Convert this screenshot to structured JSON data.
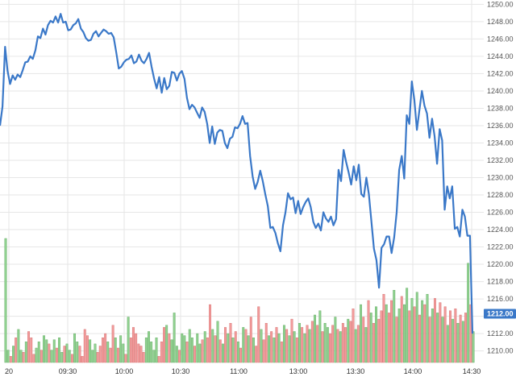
{
  "chart_data": {
    "type": "line",
    "x_tick_labels": [
      "20",
      "09:30",
      "10:00",
      "10:30",
      "11:00",
      "13:00",
      "13:30",
      "14:00",
      "14:30"
    ],
    "y_tick_labels": [
      "1210.00",
      "1212.00",
      "1214.00",
      "1216.00",
      "1218.00",
      "1220.00",
      "1222.00",
      "1224.00",
      "1226.00",
      "1228.00",
      "1230.00",
      "1232.00",
      "1234.00",
      "1236.00",
      "1238.00",
      "1240.00",
      "1242.00",
      "1244.00",
      "1246.00",
      "1248.00",
      "1250.00"
    ],
    "ylim": [
      1209.5,
      1250.5
    ],
    "last_price_label": "1212.00",
    "grid": true,
    "colors": {
      "price": "#3a78c8",
      "volume_up": "#8fd18f",
      "volume_down": "#f29a9a"
    },
    "series": [
      {
        "values": [
          1236.0,
          1238.2,
          1245.1,
          1242.3,
          1240.8,
          1241.8,
          1241.3,
          1241.9,
          1241.6,
          1242.4,
          1243.3,
          1243.4,
          1244.0,
          1243.7,
          1244.7,
          1246.3,
          1246.1,
          1247.2,
          1246.5,
          1247.6,
          1248.1,
          1247.9,
          1248.6,
          1247.9,
          1248.9,
          1247.9,
          1248.0,
          1247.0,
          1247.1,
          1247.6,
          1247.8,
          1248.3,
          1247.2,
          1246.8,
          1246.1,
          1245.8,
          1245.9,
          1246.6,
          1246.9,
          1246.3,
          1246.7,
          1247.1,
          1246.9,
          1246.6,
          1246.7,
          1246.2,
          1244.5,
          1242.6,
          1242.8,
          1243.3,
          1243.6,
          1243.7,
          1244.1,
          1243.2,
          1243.4,
          1244.2,
          1243.5,
          1243.2,
          1243.7,
          1244.4,
          1242.8,
          1241.4,
          1240.3,
          1241.6,
          1239.8,
          1241.5,
          1240.2,
          1240.6,
          1242.2,
          1242.1,
          1241.2,
          1242.0,
          1242.3,
          1241.4,
          1239.2,
          1237.9,
          1238.4,
          1238.1,
          1237.5,
          1236.9,
          1238.1,
          1237.6,
          1236.2,
          1234.0,
          1235.9,
          1233.9,
          1235.2,
          1235.5,
          1235.4,
          1234.0,
          1233.4,
          1234.5,
          1234.7,
          1235.8,
          1235.7,
          1236.2,
          1237.1,
          1236.2,
          1236.3,
          1232.5,
          1230.1,
          1228.7,
          1229.5,
          1230.8,
          1229.6,
          1228.1,
          1226.7,
          1224.2,
          1224.3,
          1223.6,
          1222.4,
          1221.5,
          1224.5,
          1226.0,
          1228.2,
          1227.5,
          1227.7,
          1225.9,
          1227.3,
          1225.8,
          1226.6,
          1227.2,
          1227.6,
          1226.6,
          1224.9,
          1224.2,
          1224.7,
          1223.9,
          1226.0,
          1225.3,
          1224.9,
          1225.5,
          1224.5,
          1225.2,
          1230.9,
          1229.6,
          1233.2,
          1231.8,
          1230.6,
          1229.2,
          1231.3,
          1229.7,
          1231.5,
          1228.1,
          1227.8,
          1230.0,
          1228.1,
          1224.9,
          1221.8,
          1220.5,
          1217.3,
          1221.9,
          1222.3,
          1223.2,
          1223.2,
          1221.3,
          1223.1,
          1226.0,
          1230.9,
          1232.5,
          1229.9,
          1237.2,
          1236.2,
          1241.1,
          1239.0,
          1235.5,
          1237.8,
          1240.0,
          1238.3,
          1237.4,
          1234.6,
          1236.8,
          1234.8,
          1231.6,
          1235.6,
          1234.3,
          1226.3,
          1229.0,
          1227.6,
          1229.0,
          1224.1,
          1224.3,
          1223.2,
          1226.3,
          1225.5,
          1223.3,
          1223.3,
          1212.0
        ]
      }
    ],
    "volume": [
      {
        "h": 60,
        "up": true
      },
      {
        "h": 6,
        "up": true
      },
      {
        "h": 3,
        "up": false
      },
      {
        "h": 8,
        "up": true
      },
      {
        "h": 12,
        "up": false
      },
      {
        "h": 16,
        "up": true
      },
      {
        "h": 6,
        "up": true
      },
      {
        "h": 5,
        "up": false
      },
      {
        "h": 10,
        "up": true
      },
      {
        "h": 15,
        "up": false
      },
      {
        "h": 12,
        "up": false
      },
      {
        "h": 4,
        "up": false
      },
      {
        "h": 7,
        "up": true
      },
      {
        "h": 10,
        "up": true
      },
      {
        "h": 6,
        "up": false
      },
      {
        "h": 13,
        "up": true
      },
      {
        "h": 11,
        "up": true
      },
      {
        "h": 9,
        "up": false
      },
      {
        "h": 6,
        "up": true
      },
      {
        "h": 11,
        "up": true
      },
      {
        "h": 7,
        "up": false
      },
      {
        "h": 12,
        "up": true
      },
      {
        "h": 5,
        "up": true
      },
      {
        "h": 8,
        "up": false
      },
      {
        "h": 9,
        "up": true
      },
      {
        "h": 6,
        "up": true
      },
      {
        "h": 4,
        "up": false
      },
      {
        "h": 14,
        "up": true
      },
      {
        "h": 10,
        "up": true
      },
      {
        "h": 8,
        "up": false
      },
      {
        "h": 3,
        "up": false
      },
      {
        "h": 16,
        "up": false
      },
      {
        "h": 13,
        "up": false
      },
      {
        "h": 11,
        "up": true
      },
      {
        "h": 6,
        "up": true
      },
      {
        "h": 9,
        "up": true
      },
      {
        "h": 5,
        "up": false
      },
      {
        "h": 8,
        "up": false
      },
      {
        "h": 12,
        "up": false
      },
      {
        "h": 14,
        "up": false
      },
      {
        "h": 10,
        "up": true
      },
      {
        "h": 7,
        "up": false
      },
      {
        "h": 18,
        "up": false
      },
      {
        "h": 12,
        "up": true
      },
      {
        "h": 7,
        "up": false
      },
      {
        "h": 13,
        "up": true
      },
      {
        "h": 9,
        "up": true
      },
      {
        "h": 4,
        "up": false
      },
      {
        "h": 22,
        "up": true
      },
      {
        "h": 12,
        "up": false
      },
      {
        "h": 17,
        "up": false
      },
      {
        "h": 14,
        "up": false
      },
      {
        "h": 9,
        "up": false
      },
      {
        "h": 8,
        "up": false
      },
      {
        "h": 5,
        "up": false
      },
      {
        "h": 12,
        "up": true
      },
      {
        "h": 15,
        "up": true
      },
      {
        "h": 10,
        "up": true
      },
      {
        "h": 6,
        "up": true
      },
      {
        "h": 12,
        "up": true
      },
      {
        "h": 3,
        "up": false
      },
      {
        "h": 10,
        "up": false
      },
      {
        "h": 17,
        "up": false
      },
      {
        "h": 18,
        "up": true
      },
      {
        "h": 14,
        "up": false
      },
      {
        "h": 11,
        "up": true
      },
      {
        "h": 24,
        "up": true
      },
      {
        "h": 8,
        "up": true
      },
      {
        "h": 6,
        "up": false
      },
      {
        "h": 14,
        "up": true
      },
      {
        "h": 13,
        "up": true
      },
      {
        "h": 10,
        "up": false
      },
      {
        "h": 16,
        "up": true
      },
      {
        "h": 12,
        "up": true
      },
      {
        "h": 8,
        "up": false
      },
      {
        "h": 14,
        "up": true
      },
      {
        "h": 9,
        "up": true
      },
      {
        "h": 11,
        "up": false
      },
      {
        "h": 15,
        "up": true
      },
      {
        "h": 12,
        "up": false
      },
      {
        "h": 28,
        "up": false
      },
      {
        "h": 16,
        "up": true
      },
      {
        "h": 13,
        "up": false
      },
      {
        "h": 20,
        "up": true
      },
      {
        "h": 11,
        "up": false
      },
      {
        "h": 9,
        "up": true
      },
      {
        "h": 17,
        "up": false
      },
      {
        "h": 14,
        "up": true
      },
      {
        "h": 19,
        "up": false
      },
      {
        "h": 12,
        "up": true
      },
      {
        "h": 15,
        "up": false
      },
      {
        "h": 10,
        "up": true
      },
      {
        "h": 7,
        "up": false
      },
      {
        "h": 17,
        "up": true
      },
      {
        "h": 16,
        "up": false
      },
      {
        "h": 13,
        "up": true
      },
      {
        "h": 22,
        "up": false
      },
      {
        "h": 12,
        "up": true
      },
      {
        "h": 8,
        "up": false
      },
      {
        "h": 27,
        "up": false
      },
      {
        "h": 16,
        "up": true
      },
      {
        "h": 11,
        "up": false
      },
      {
        "h": 19,
        "up": false
      },
      {
        "h": 13,
        "up": true
      },
      {
        "h": 15,
        "up": false
      },
      {
        "h": 12,
        "up": true
      },
      {
        "h": 17,
        "up": false
      },
      {
        "h": 14,
        "up": true
      },
      {
        "h": 10,
        "up": false
      },
      {
        "h": 18,
        "up": true
      },
      {
        "h": 16,
        "up": false
      },
      {
        "h": 13,
        "up": true
      },
      {
        "h": 21,
        "up": false
      },
      {
        "h": 15,
        "up": true
      },
      {
        "h": 12,
        "up": false
      },
      {
        "h": 19,
        "up": true
      },
      {
        "h": 17,
        "up": false
      },
      {
        "h": 14,
        "up": true
      },
      {
        "h": 18,
        "up": false
      },
      {
        "h": 16,
        "up": true
      },
      {
        "h": 20,
        "up": false
      },
      {
        "h": 23,
        "up": true
      },
      {
        "h": 18,
        "up": false
      },
      {
        "h": 25,
        "up": true
      },
      {
        "h": 15,
        "up": false
      },
      {
        "h": 19,
        "up": true
      },
      {
        "h": 17,
        "up": true
      },
      {
        "h": 14,
        "up": false
      },
      {
        "h": 18,
        "up": false
      },
      {
        "h": 22,
        "up": true
      },
      {
        "h": 16,
        "up": false
      },
      {
        "h": 15,
        "up": true
      },
      {
        "h": 19,
        "up": false
      },
      {
        "h": 17,
        "up": false
      },
      {
        "h": 21,
        "up": true
      },
      {
        "h": 20,
        "up": false
      },
      {
        "h": 26,
        "up": false
      },
      {
        "h": 16,
        "up": true
      },
      {
        "h": 18,
        "up": false
      },
      {
        "h": 28,
        "up": true
      },
      {
        "h": 22,
        "up": false
      },
      {
        "h": 17,
        "up": true
      },
      {
        "h": 30,
        "up": false
      },
      {
        "h": 24,
        "up": true
      },
      {
        "h": 19,
        "up": false
      },
      {
        "h": 27,
        "up": true
      },
      {
        "h": 21,
        "up": false
      },
      {
        "h": 25,
        "up": false
      },
      {
        "h": 33,
        "up": false
      },
      {
        "h": 28,
        "up": true
      },
      {
        "h": 24,
        "up": false
      },
      {
        "h": 30,
        "up": false
      },
      {
        "h": 35,
        "up": true
      },
      {
        "h": 22,
        "up": false
      },
      {
        "h": 26,
        "up": true
      },
      {
        "h": 32,
        "up": false
      },
      {
        "h": 28,
        "up": true
      },
      {
        "h": 36,
        "up": true
      },
      {
        "h": 25,
        "up": false
      },
      {
        "h": 31,
        "up": true
      },
      {
        "h": 27,
        "up": false
      },
      {
        "h": 34,
        "up": true
      },
      {
        "h": 23,
        "up": false
      },
      {
        "h": 30,
        "up": true
      },
      {
        "h": 28,
        "up": false
      },
      {
        "h": 33,
        "up": true
      },
      {
        "h": 22,
        "up": false
      },
      {
        "h": 26,
        "up": true
      },
      {
        "h": 31,
        "up": false
      },
      {
        "h": 24,
        "up": true
      },
      {
        "h": 29,
        "up": false
      },
      {
        "h": 22,
        "up": true
      },
      {
        "h": 27,
        "up": false
      },
      {
        "h": 18,
        "up": true
      },
      {
        "h": 25,
        "up": false
      },
      {
        "h": 21,
        "up": true
      },
      {
        "h": 26,
        "up": false
      },
      {
        "h": 19,
        "up": true
      },
      {
        "h": 23,
        "up": false
      },
      {
        "h": 20,
        "up": true
      },
      {
        "h": 24,
        "up": false
      },
      {
        "h": 48,
        "up": true
      },
      {
        "h": 28,
        "up": false
      },
      {
        "h": 15,
        "up": true
      }
    ]
  }
}
